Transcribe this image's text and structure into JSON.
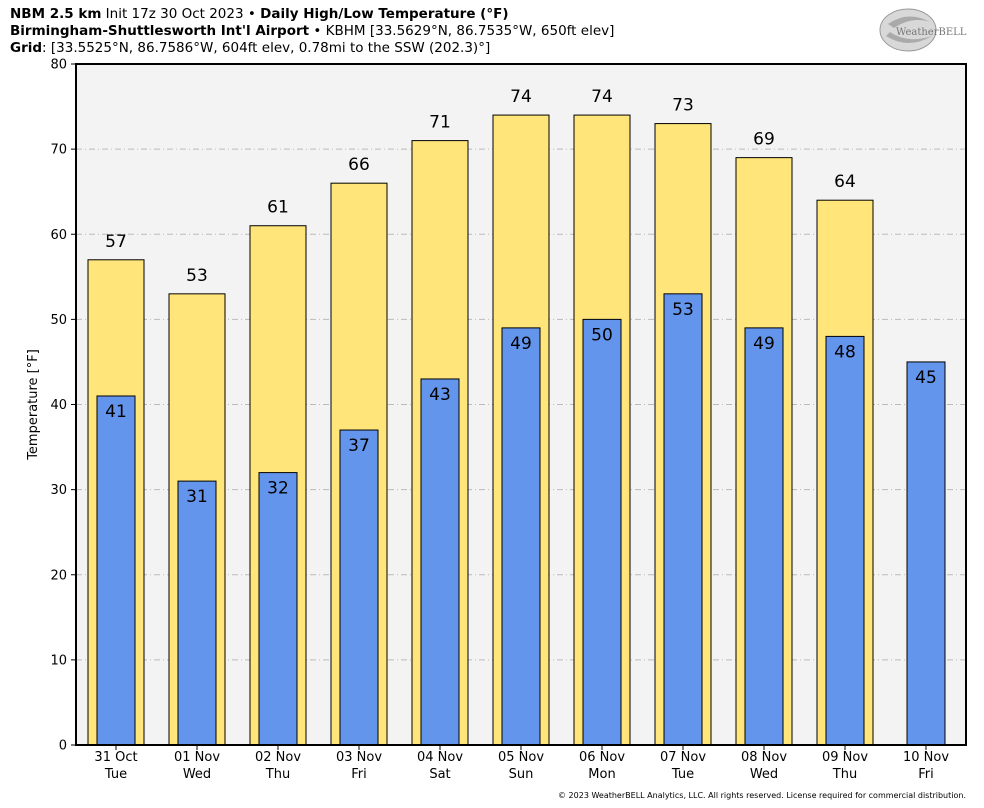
{
  "header": {
    "line1_bold_a": "NBM 2.5 km",
    "line1_plain": " Init 17z 30 Oct 2023 • ",
    "line1_bold_b": "Daily High/Low Temperature (°F)",
    "line2_bold": "Birmingham-Shuttlesworth Int'l Airport",
    "line2_plain": " • KBHM [33.5629°N, 86.7535°W, 650ft elev]",
    "line3_bold": "Grid",
    "line3_plain": ": [33.5525°N, 86.7586°W, 604ft elev, 0.78mi to the SSW (202.3)°]"
  },
  "logo": {
    "text": "WeatherBELL"
  },
  "copyright": "© 2023 WeatherBELL Analytics, LLC. All rights reserved. License required for commercial distribution.",
  "colors": {
    "high": "#ffe57a",
    "low": "#6495ed",
    "plot_bg": "#f3f3f3",
    "grid": "#bbbbbb"
  },
  "chart_data": {
    "type": "bar",
    "ylabel": "Temperature [°F]",
    "ylim": [
      0,
      80
    ],
    "yticks": [
      0,
      10,
      20,
      30,
      40,
      50,
      60,
      70,
      80
    ],
    "grid": true,
    "categories": [
      {
        "date": "31 Oct",
        "day": "Tue"
      },
      {
        "date": "01 Nov",
        "day": "Wed"
      },
      {
        "date": "02 Nov",
        "day": "Thu"
      },
      {
        "date": "03 Nov",
        "day": "Fri"
      },
      {
        "date": "04 Nov",
        "day": "Sat"
      },
      {
        "date": "05 Nov",
        "day": "Sun"
      },
      {
        "date": "06 Nov",
        "day": "Mon"
      },
      {
        "date": "07 Nov",
        "day": "Tue"
      },
      {
        "date": "08 Nov",
        "day": "Wed"
      },
      {
        "date": "09 Nov",
        "day": "Thu"
      },
      {
        "date": "10 Nov",
        "day": "Fri"
      }
    ],
    "series": [
      {
        "key": "high",
        "values": [
          57,
          53,
          61,
          66,
          71,
          74,
          74,
          73,
          69,
          64,
          null
        ]
      },
      {
        "key": "low",
        "values": [
          41,
          31,
          32,
          37,
          43,
          49,
          50,
          53,
          49,
          48,
          45
        ]
      }
    ]
  }
}
